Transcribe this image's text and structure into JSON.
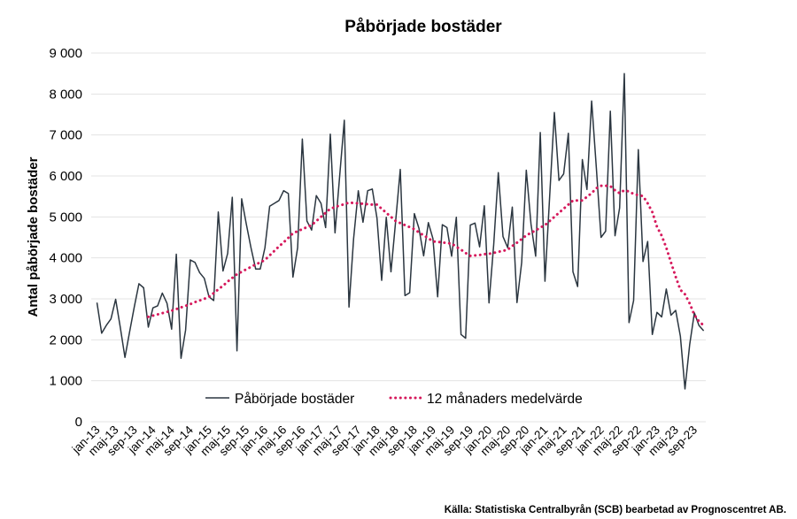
{
  "chart_data": {
    "type": "line",
    "title": "Påbörjade bostäder",
    "ylabel": "Antal påbörjade bostäder",
    "xlabel": "",
    "ylim": [
      0,
      9000
    ],
    "yticks": [
      "0",
      "1 000",
      "2 000",
      "3 000",
      "4 000",
      "5 000",
      "6 000",
      "7 000",
      "8 000",
      "9 000"
    ],
    "ytick_values": [
      0,
      1000,
      2000,
      3000,
      4000,
      5000,
      6000,
      7000,
      8000,
      9000
    ],
    "grid": true,
    "legend_position": "bottom-center",
    "source": "Källa: Statistiska Centralbyrån (SCB) bearbetad av Prognoscentret AB.",
    "tick_every": 4,
    "categories": [
      "jan-13",
      "feb-13",
      "mar-13",
      "apr-13",
      "maj-13",
      "jun-13",
      "jul-13",
      "aug-13",
      "sep-13",
      "okt-13",
      "nov-13",
      "dec-13",
      "jan-14",
      "feb-14",
      "mar-14",
      "apr-14",
      "maj-14",
      "jun-14",
      "jul-14",
      "aug-14",
      "sep-14",
      "okt-14",
      "nov-14",
      "dec-14",
      "jan-15",
      "feb-15",
      "mar-15",
      "apr-15",
      "maj-15",
      "jun-15",
      "jul-15",
      "aug-15",
      "sep-15",
      "okt-15",
      "nov-15",
      "dec-15",
      "jan-16",
      "feb-16",
      "mar-16",
      "apr-16",
      "maj-16",
      "jun-16",
      "jul-16",
      "aug-16",
      "sep-16",
      "okt-16",
      "nov-16",
      "dec-16",
      "jan-17",
      "feb-17",
      "mar-17",
      "apr-17",
      "maj-17",
      "jun-17",
      "jul-17",
      "aug-17",
      "sep-17",
      "okt-17",
      "nov-17",
      "dec-17",
      "jan-18",
      "feb-18",
      "mar-18",
      "apr-18",
      "maj-18",
      "jun-18",
      "jul-18",
      "aug-18",
      "sep-18",
      "okt-18",
      "nov-18",
      "dec-18",
      "jan-19",
      "feb-19",
      "mar-19",
      "apr-19",
      "maj-19",
      "jun-19",
      "jul-19",
      "aug-19",
      "sep-19",
      "okt-19",
      "nov-19",
      "dec-19",
      "jan-20",
      "feb-20",
      "mar-20",
      "apr-20",
      "maj-20",
      "jun-20",
      "jul-20",
      "aug-20",
      "sep-20",
      "okt-20",
      "nov-20",
      "dec-20",
      "jan-21",
      "feb-21",
      "mar-21",
      "apr-21",
      "maj-21",
      "jun-21",
      "jul-21",
      "aug-21",
      "sep-21",
      "okt-21",
      "nov-21",
      "dec-21",
      "jan-22",
      "feb-22",
      "mar-22",
      "apr-22",
      "maj-22",
      "jun-22",
      "jul-22",
      "aug-22",
      "sep-22",
      "okt-22",
      "nov-22",
      "dec-22",
      "jan-23",
      "feb-23",
      "mar-23",
      "apr-23",
      "maj-23",
      "jun-23",
      "jul-23",
      "aug-23",
      "sep-23",
      "okt-23",
      "nov-23"
    ],
    "series": [
      {
        "name": "Påbörjade bostäder",
        "color": "#2b3640",
        "style": "solid",
        "values": [
          2910,
          2160,
          2350,
          2510,
          2990,
          2310,
          1570,
          2200,
          2810,
          3370,
          3270,
          2310,
          2780,
          2830,
          3140,
          2890,
          2260,
          4090,
          1550,
          2240,
          3950,
          3890,
          3640,
          3500,
          3050,
          2960,
          5120,
          3680,
          4110,
          5480,
          1730,
          5440,
          4830,
          4250,
          3730,
          3730,
          4250,
          5260,
          5330,
          5400,
          5640,
          5570,
          3530,
          4250,
          6900,
          4900,
          4680,
          5520,
          5330,
          4740,
          7020,
          4610,
          5980,
          7360,
          2800,
          4470,
          5640,
          4870,
          5640,
          5680,
          4970,
          3450,
          4990,
          3660,
          4900,
          6160,
          3080,
          3150,
          5080,
          4720,
          4050,
          4860,
          4470,
          3050,
          4810,
          4740,
          4040,
          4990,
          2130,
          2040,
          4800,
          4850,
          4270,
          5270,
          2900,
          4320,
          6080,
          4520,
          4250,
          5240,
          2910,
          3890,
          6140,
          4830,
          4040,
          7060,
          3430,
          5500,
          7550,
          5890,
          6050,
          7040,
          3660,
          3300,
          6400,
          5670,
          7830,
          6200,
          4500,
          4650,
          7580,
          4540,
          5220,
          8500,
          2420,
          2960,
          6640,
          3910,
          4400,
          2130,
          2670,
          2560,
          3240,
          2600,
          2720,
          2090,
          800,
          1880,
          2660,
          2350,
          2220
        ]
      },
      {
        "name": "12 månaders medelvärde",
        "color": "#d6195c",
        "style": "dotted",
        "values": [
          null,
          null,
          null,
          null,
          null,
          null,
          null,
          null,
          null,
          null,
          null,
          2560,
          2590,
          2620,
          2650,
          2680,
          2710,
          2750,
          2790,
          2830,
          2870,
          2920,
          2960,
          3000,
          3050,
          3140,
          3230,
          3320,
          3420,
          3510,
          3600,
          3660,
          3720,
          3780,
          3840,
          3890,
          3950,
          4060,
          4170,
          4280,
          4380,
          4490,
          4600,
          4650,
          4700,
          4750,
          4800,
          4900,
          5000,
          5100,
          5200,
          5240,
          5280,
          5310,
          5350,
          5340,
          5330,
          5320,
          5310,
          5300,
          5300,
          5200,
          5100,
          5000,
          4900,
          4850,
          4800,
          4750,
          4700,
          4620,
          4550,
          4480,
          4400,
          4390,
          4380,
          4360,
          4350,
          4270,
          4200,
          4120,
          4050,
          4060,
          4070,
          4090,
          4100,
          4120,
          4150,
          4170,
          4200,
          4290,
          4370,
          4460,
          4550,
          4610,
          4670,
          4740,
          4800,
          4900,
          5000,
          5100,
          5200,
          5300,
          5400,
          5400,
          5400,
          5490,
          5580,
          5700,
          5760,
          5760,
          5750,
          5650,
          5580,
          5650,
          5620,
          5560,
          5530,
          5510,
          5330,
          5120,
          4760,
          4540,
          4250,
          3890,
          3540,
          3220,
          3110,
          2890,
          2610,
          2450,
          2350
        ]
      }
    ]
  }
}
